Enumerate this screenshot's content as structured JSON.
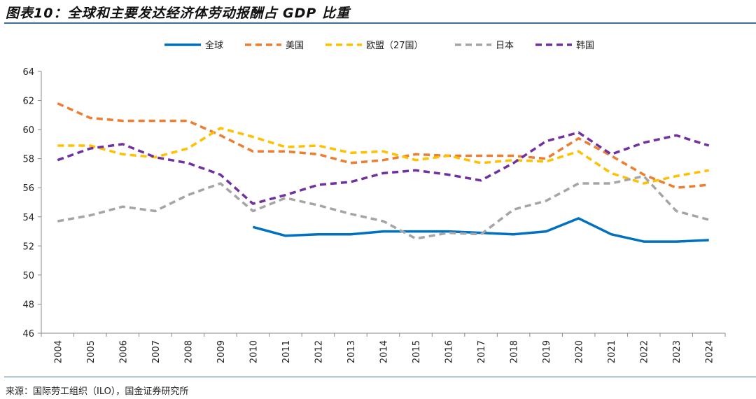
{
  "header": {
    "title": "图表10：全球和主要发达经济体劳动报酬占 GDP 比重"
  },
  "footer": {
    "source": "来源：国际劳工组织（ILO），国金证券研究所"
  },
  "chart_data": {
    "type": "line",
    "title": "图表10：全球和主要发达经济体劳动报酬占 GDP 比重",
    "xlabel": "",
    "ylabel": "",
    "ylim": [
      46,
      64
    ],
    "yticks": [
      46,
      48,
      50,
      52,
      54,
      56,
      58,
      60,
      62,
      64
    ],
    "grid": false,
    "legend": "top",
    "categories": [
      "2004",
      "2005",
      "2006",
      "2007",
      "2008",
      "2009",
      "2010",
      "2011",
      "2012",
      "2013",
      "2014",
      "2015",
      "2016",
      "2017",
      "2018",
      "2019",
      "2020",
      "2021",
      "2022",
      "2023",
      "2024"
    ],
    "series": [
      {
        "name": "全球",
        "color": "#0070c0",
        "dash": "solid",
        "values": [
          null,
          null,
          null,
          null,
          null,
          null,
          53.3,
          52.7,
          52.8,
          52.8,
          53.0,
          53.0,
          53.0,
          52.9,
          52.8,
          53.0,
          53.9,
          52.8,
          52.3,
          52.3,
          52.4
        ]
      },
      {
        "name": "美国",
        "color": "#ed7d31",
        "dash": "dashed",
        "values": [
          61.8,
          60.8,
          60.6,
          60.6,
          60.6,
          59.6,
          58.5,
          58.5,
          58.3,
          57.7,
          57.9,
          58.3,
          58.2,
          58.2,
          58.2,
          58.0,
          59.4,
          58.2,
          56.9,
          56.0,
          56.2
        ]
      },
      {
        "name": "欧盟（27国）",
        "color": "#ffc000",
        "dash": "dashed",
        "values": [
          58.9,
          58.9,
          58.3,
          58.1,
          58.7,
          60.1,
          59.5,
          58.8,
          58.9,
          58.4,
          58.5,
          57.9,
          58.2,
          57.7,
          57.9,
          57.8,
          58.5,
          57.0,
          56.3,
          56.8,
          57.2
        ]
      },
      {
        "name": "日本",
        "color": "#a5a5a5",
        "dash": "dashed",
        "values": [
          53.7,
          54.1,
          54.7,
          54.4,
          55.5,
          56.3,
          54.4,
          55.3,
          54.8,
          54.2,
          53.7,
          52.5,
          52.9,
          52.8,
          54.5,
          55.1,
          56.3,
          56.3,
          56.8,
          54.4,
          53.8
        ]
      },
      {
        "name": "韩国",
        "color": "#7030a0",
        "dash": "dashed",
        "values": [
          57.9,
          58.7,
          59.0,
          58.1,
          57.7,
          56.9,
          54.9,
          55.5,
          56.2,
          56.4,
          57.0,
          57.2,
          56.9,
          56.5,
          57.7,
          59.2,
          59.8,
          58.3,
          59.1,
          59.6,
          58.9
        ]
      }
    ]
  }
}
